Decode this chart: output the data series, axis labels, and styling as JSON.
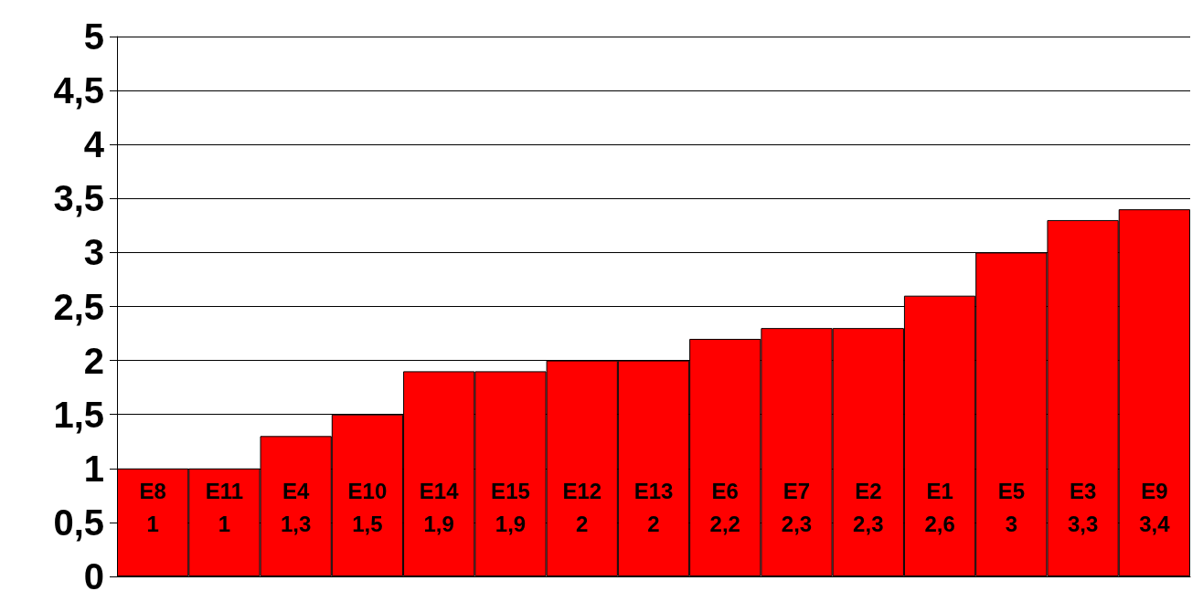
{
  "chart_data": {
    "type": "bar",
    "categories": [
      "E8",
      "E11",
      "E4",
      "E10",
      "E14",
      "E15",
      "E12",
      "E13",
      "E6",
      "E7",
      "E2",
      "E1",
      "E5",
      "E3",
      "E9"
    ],
    "values": [
      1,
      1,
      1.3,
      1.5,
      1.9,
      1.9,
      2,
      2,
      2.2,
      2.3,
      2.3,
      2.6,
      3,
      3.3,
      3.4
    ],
    "value_labels": [
      "1",
      "1",
      "1,3",
      "1,5",
      "1,9",
      "1,9",
      "2",
      "2",
      "2,2",
      "2,3",
      "2,3",
      "2,6",
      "3",
      "3,3",
      "3,4"
    ],
    "color": "#ff0000",
    "ylim": [
      0,
      5
    ],
    "yticks": [
      0,
      {
        "value": 0.5,
        "label": "0,5"
      },
      1,
      {
        "value": 1.5,
        "label": "1,5"
      },
      2,
      {
        "value": 2.5,
        "label": "2,5"
      },
      3,
      {
        "value": 3.5,
        "label": "3,5"
      },
      4,
      {
        "value": 4.5,
        "label": "4,5"
      },
      5
    ],
    "grid": "y"
  }
}
